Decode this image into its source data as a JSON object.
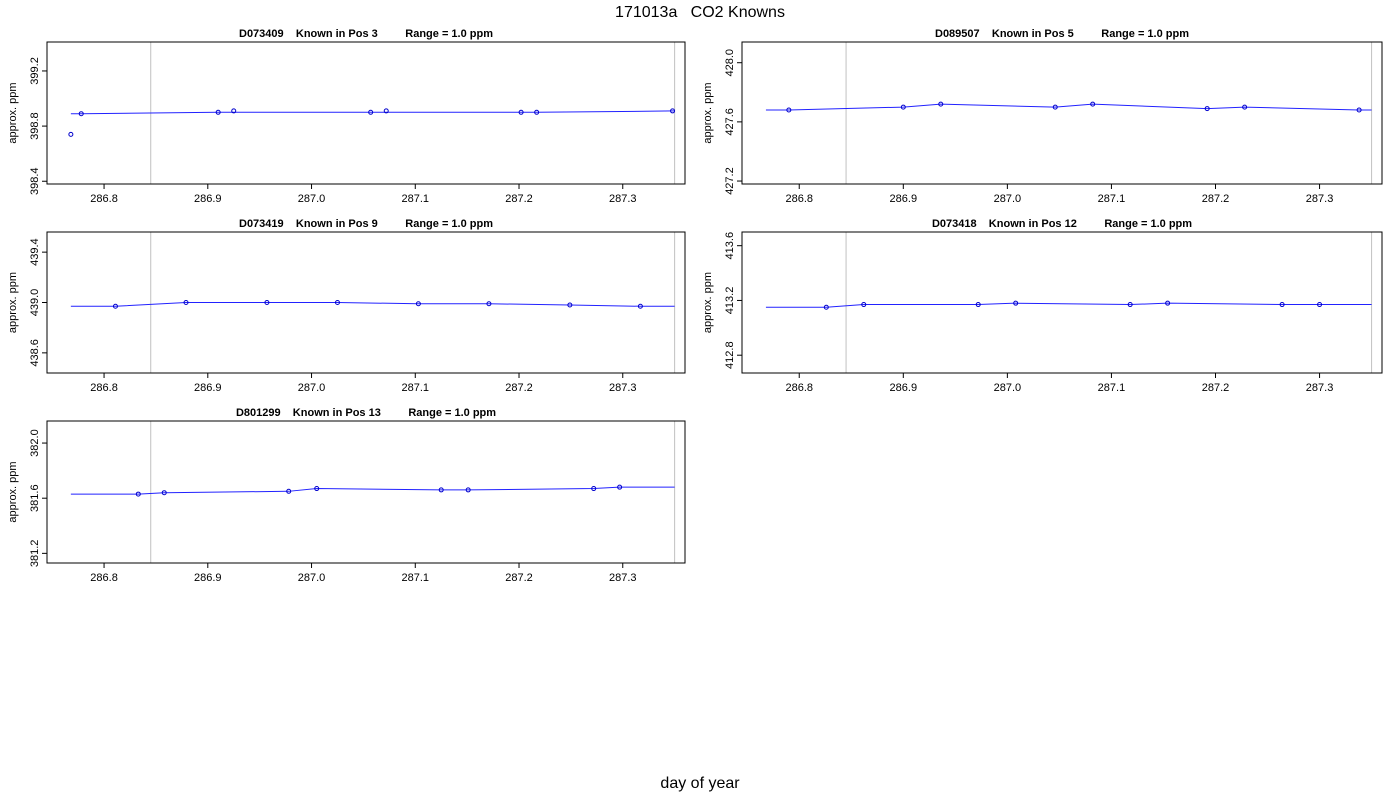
{
  "title": "171013a   CO2 Knowns",
  "xlabel": "day of year",
  "colors": {
    "line": "#2222ff",
    "points": "#0000cc",
    "frame": "#000000",
    "vline": "#c0c0c0"
  },
  "chart_data": [
    {
      "type": "line",
      "title": "D073409    Known in Pos 3         Range = 1.0 ppm",
      "ylabel": "approx. ppm",
      "xlim": [
        286.745,
        287.36
      ],
      "ylim": [
        398.38,
        399.41
      ],
      "xticks": [
        286.8,
        286.9,
        287.0,
        287.1,
        287.2,
        287.3
      ],
      "xtick_labels": [
        "286.8",
        "286.9",
        "287.0",
        "287.1",
        "287.2",
        "287.3"
      ],
      "yticks": [
        398.4,
        398.8,
        399.2
      ],
      "ytick_labels": [
        "398.4",
        "398.8",
        "399.2"
      ],
      "vlines": [
        286.845,
        287.35
      ],
      "line": {
        "x": [
          286.768,
          286.778,
          286.91,
          286.925,
          287.057,
          287.072,
          287.202,
          287.217,
          287.35
        ],
        "y": [
          398.89,
          398.89,
          398.9,
          398.9,
          398.9,
          398.9,
          398.9,
          398.9,
          398.91
        ]
      },
      "points": {
        "x": [
          286.768,
          286.778,
          286.91,
          286.925,
          287.057,
          287.072,
          287.202,
          287.217,
          287.348
        ],
        "y": [
          398.74,
          398.89,
          398.9,
          398.91,
          398.9,
          398.91,
          398.9,
          398.9,
          398.91
        ]
      }
    },
    {
      "type": "line",
      "title": "D089507    Known in Pos 5         Range = 1.0 ppm",
      "ylabel": "approx. ppm",
      "xlim": [
        286.745,
        287.36
      ],
      "ylim": [
        427.18,
        428.14
      ],
      "xticks": [
        286.8,
        286.9,
        287.0,
        287.1,
        287.2,
        287.3
      ],
      "xtick_labels": [
        "286.8",
        "286.9",
        "287.0",
        "287.1",
        "287.2",
        "287.3"
      ],
      "yticks": [
        427.2,
        427.6,
        428.0
      ],
      "ytick_labels": [
        "427.2",
        "427.6",
        "428.0"
      ],
      "vlines": [
        286.845,
        287.35
      ],
      "line": {
        "x": [
          286.768,
          286.79,
          286.9,
          286.936,
          287.046,
          287.082,
          287.192,
          287.228,
          287.338,
          287.35
        ],
        "y": [
          427.68,
          427.68,
          427.7,
          427.72,
          427.7,
          427.72,
          427.69,
          427.7,
          427.68,
          427.68
        ]
      },
      "points": {
        "x": [
          286.79,
          286.9,
          286.936,
          287.046,
          287.082,
          287.192,
          287.228,
          287.338
        ],
        "y": [
          427.68,
          427.7,
          427.72,
          427.7,
          427.72,
          427.69,
          427.7,
          427.68
        ]
      }
    },
    {
      "type": "line",
      "title": "D073419    Known in Pos 9         Range = 1.0 ppm",
      "ylabel": "approx. ppm",
      "xlim": [
        286.745,
        287.36
      ],
      "ylim": [
        438.44,
        439.56
      ],
      "xticks": [
        286.8,
        286.9,
        287.0,
        287.1,
        287.2,
        287.3
      ],
      "xtick_labels": [
        "286.8",
        "286.9",
        "287.0",
        "287.1",
        "287.2",
        "287.3"
      ],
      "yticks": [
        438.6,
        439.0,
        439.4
      ],
      "ytick_labels": [
        "438.6",
        "439.0",
        "439.4"
      ],
      "vlines": [
        286.845,
        287.35
      ],
      "line": {
        "x": [
          286.768,
          286.811,
          286.879,
          286.957,
          287.025,
          287.103,
          287.171,
          287.249,
          287.317,
          287.35
        ],
        "y": [
          438.97,
          438.97,
          439.0,
          439.0,
          439.0,
          438.99,
          438.99,
          438.98,
          438.97,
          438.97
        ]
      },
      "points": {
        "x": [
          286.811,
          286.879,
          286.957,
          287.025,
          287.103,
          287.171,
          287.249,
          287.317
        ],
        "y": [
          438.97,
          439.0,
          439.0,
          439.0,
          438.99,
          438.99,
          438.98,
          438.97
        ]
      }
    },
    {
      "type": "line",
      "title": "D073418    Known in Pos 12         Range = 1.0 ppm",
      "ylabel": "approx. ppm",
      "xlim": [
        286.745,
        287.36
      ],
      "ylim": [
        412.67,
        413.7
      ],
      "xticks": [
        286.8,
        286.9,
        287.0,
        287.1,
        287.2,
        287.3
      ],
      "xtick_labels": [
        "286.8",
        "286.9",
        "287.0",
        "287.1",
        "287.2",
        "287.3"
      ],
      "yticks": [
        412.8,
        413.2,
        413.6
      ],
      "ytick_labels": [
        "412.8",
        "413.2",
        "413.6"
      ],
      "vlines": [
        286.845,
        287.35
      ],
      "line": {
        "x": [
          286.768,
          286.826,
          286.862,
          286.972,
          287.008,
          287.118,
          287.154,
          287.264,
          287.3,
          287.35
        ],
        "y": [
          413.15,
          413.15,
          413.17,
          413.17,
          413.18,
          413.17,
          413.18,
          413.17,
          413.17,
          413.17
        ]
      },
      "points": {
        "x": [
          286.826,
          286.862,
          286.972,
          287.008,
          287.118,
          287.154,
          287.264,
          287.3
        ],
        "y": [
          413.15,
          413.17,
          413.17,
          413.18,
          413.17,
          413.18,
          413.17,
          413.17
        ]
      }
    },
    {
      "type": "line",
      "title": "D801299    Known in Pos 13         Range = 1.0 ppm",
      "ylabel": "approx. ppm",
      "xlim": [
        286.745,
        287.36
      ],
      "ylim": [
        381.13,
        382.16
      ],
      "xticks": [
        286.8,
        286.9,
        287.0,
        287.1,
        287.2,
        287.3
      ],
      "xtick_labels": [
        "286.8",
        "286.9",
        "287.0",
        "287.1",
        "287.2",
        "287.3"
      ],
      "yticks": [
        381.2,
        381.6,
        382.0
      ],
      "ytick_labels": [
        "381.2",
        "381.6",
        "382.0"
      ],
      "vlines": [
        286.845,
        287.35
      ],
      "line": {
        "x": [
          286.768,
          286.833,
          286.858,
          286.978,
          287.005,
          287.125,
          287.151,
          287.272,
          287.297,
          287.35
        ],
        "y": [
          381.63,
          381.63,
          381.64,
          381.65,
          381.67,
          381.66,
          381.66,
          381.67,
          381.68,
          381.68
        ]
      },
      "points": {
        "x": [
          286.833,
          286.858,
          286.978,
          287.005,
          287.125,
          287.151,
          287.272,
          287.297
        ],
        "y": [
          381.63,
          381.64,
          381.65,
          381.67,
          381.66,
          381.66,
          381.67,
          381.68
        ]
      }
    }
  ]
}
